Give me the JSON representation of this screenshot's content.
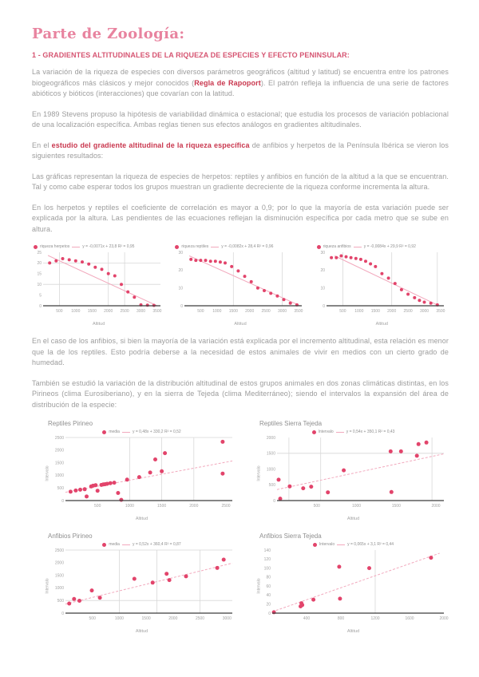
{
  "page": {
    "title": "Parte de Zoología:",
    "heading": "1 - GRADIENTES ALTITUDINALES DE LA RIQUEZA DE ESPECIES Y EFECTO PENINSULAR:"
  },
  "paragraphs": {
    "p1_a": "La variación de la riqueza de especies con diversos parámetros geográficos (altitud y latitud) se encuentra entre los patrones biogeográficos más clásicos y mejor conocidos (",
    "p1_highlight": "Regla de Rapoport",
    "p1_b": "). El patrón refleja la influencia de una serie de factores abióticos y bióticos (interacciones) que covarían con la latitud.",
    "p2": "En 1989 Stevens propuso la hipótesis de variabilidad dinámica o estacional; que estudia los procesos de variación poblacional de una localización específica. Ambas reglas tienen sus efectos análogos en gradientes altitudinales.",
    "p3_a": "En el ",
    "p3_highlight": "estudio del gradiente altitudinal de la riqueza específica",
    "p3_b": " de anfibios y herpetos de la Península Ibérica se vieron los siguientes resultados:",
    "p4": "Las gráficas representan la riqueza de especies de herpetos: reptiles y anfibios en función de la altitud a la que se encuentran. Tal y como cabe esperar todos los grupos muestran un gradiente decreciente de la riqueza conforme incrementa la altura.",
    "p5": "En los herpetos y reptiles el coeficiente de correlación es mayor a 0,9; por lo que la mayoría de esta variación puede ser explicada por la altura. Las pendientes de las ecuaciones reflejan la disminución específica por cada metro que se sube en altura.",
    "p6": "En el caso de los anfibios, si bien la mayoría de la variación está explicada por el incremento altitudinal, esta relación es menor que la de los reptiles. Esto podría deberse a la necesidad de estos animales de vivir en medios con un cierto grado de humedad.",
    "p7": "También se estudió la variación de la distribución altitudinal de estos grupos animales en dos zonas climáticas distintas, en los Pirineos (clima Eurosiberiano), y en la sierra de Tejeda (clima Mediterráneo); siendo el intervalos la expansión del área de distribución de la especie:"
  },
  "colors": {
    "title_pink": "#e8839f",
    "heading_pink": "#d65572",
    "highlight_red": "#c9374e",
    "body_gray": "#9c9c9c",
    "dot_pink": "#e2446b",
    "trend_pink": "#f2a9bd",
    "grid_gray": "#d8d8d8",
    "axis_dark": "#3c3c3c"
  },
  "chart_data": [
    {
      "type": "scatter",
      "title": "",
      "series_label": "riqueza herpetos",
      "trend_label": "y = -0,0071x + 23,8  R² = 0,95",
      "xlabel": "Altitud",
      "ylabel": "",
      "xlim": [
        0,
        3600
      ],
      "ylim": [
        0,
        25
      ],
      "xticks": [
        500,
        1000,
        1500,
        2000,
        2500,
        3000,
        3500
      ],
      "yticks": [
        0,
        5,
        10,
        15,
        20,
        25
      ],
      "xgrid": [
        500,
        2000,
        2500
      ],
      "ygrid": [
        10,
        20
      ],
      "points": [
        [
          200,
          20
        ],
        [
          400,
          21
        ],
        [
          600,
          22
        ],
        [
          800,
          21.5
        ],
        [
          1000,
          21
        ],
        [
          1200,
          20.5
        ],
        [
          1400,
          19.5
        ],
        [
          1600,
          18
        ],
        [
          1800,
          17
        ],
        [
          2000,
          15
        ],
        [
          2200,
          14
        ],
        [
          2400,
          10
        ],
        [
          2600,
          6.5
        ],
        [
          2800,
          4
        ],
        [
          3000,
          0.4
        ],
        [
          3200,
          0.3
        ],
        [
          3400,
          0.2
        ]
      ],
      "trend": [
        [
          150,
          23.5
        ],
        [
          3500,
          0
        ]
      ],
      "ml": 14,
      "r": 2
    },
    {
      "type": "scatter",
      "title": "",
      "series_label": "riqueza reptiles",
      "trend_label": "y = -0,0082x + 28,4  R² = 0,96",
      "xlabel": "Altitud",
      "ylabel": "",
      "xlim": [
        0,
        3600
      ],
      "ylim": [
        0,
        30
      ],
      "xticks": [
        500,
        1000,
        1500,
        2000,
        2500,
        3000,
        3500
      ],
      "yticks": [
        0,
        10,
        20,
        30
      ],
      "xgrid": [
        1500,
        3000
      ],
      "ygrid": [],
      "points": [
        [
          200,
          26
        ],
        [
          350,
          25.5
        ],
        [
          500,
          25.5
        ],
        [
          650,
          25.5
        ],
        [
          800,
          25
        ],
        [
          950,
          25
        ],
        [
          1100,
          24.5
        ],
        [
          1250,
          24
        ],
        [
          1450,
          22
        ],
        [
          1650,
          19.5
        ],
        [
          1850,
          16.5
        ],
        [
          2050,
          13.5
        ],
        [
          2250,
          10
        ],
        [
          2450,
          8.5
        ],
        [
          2650,
          7
        ],
        [
          2850,
          5.5
        ],
        [
          3050,
          3.5
        ],
        [
          3250,
          1.5
        ],
        [
          3450,
          0.5
        ]
      ],
      "trend": [
        [
          150,
          28
        ],
        [
          3550,
          0
        ]
      ],
      "ml": 14,
      "r": 2
    },
    {
      "type": "scatter",
      "title": "",
      "series_label": "riqueza anfibios",
      "trend_label": "y = -0,0084x + 29,9  R² = 0,92",
      "xlabel": "Altitud",
      "ylabel": "",
      "xlim": [
        0,
        3600
      ],
      "ylim": [
        0,
        30
      ],
      "xticks": [
        500,
        1000,
        1500,
        2000,
        2500,
        3000,
        3500
      ],
      "yticks": [
        0,
        10,
        20,
        30
      ],
      "xgrid": [
        500,
        2000,
        3400
      ],
      "ygrid": [],
      "points": [
        [
          150,
          27
        ],
        [
          300,
          27
        ],
        [
          450,
          28
        ],
        [
          600,
          27.5
        ],
        [
          750,
          27
        ],
        [
          900,
          26.5
        ],
        [
          1050,
          26
        ],
        [
          1200,
          25
        ],
        [
          1350,
          23.5
        ],
        [
          1500,
          22
        ],
        [
          1700,
          18
        ],
        [
          1900,
          15.5
        ],
        [
          2100,
          12.5
        ],
        [
          2300,
          9
        ],
        [
          2500,
          6.5
        ],
        [
          2700,
          4.5
        ],
        [
          2850,
          3
        ],
        [
          3000,
          2
        ],
        [
          3200,
          1.5
        ],
        [
          3400,
          0.5
        ]
      ],
      "trend": [
        [
          250,
          28
        ],
        [
          3450,
          0
        ]
      ],
      "ml": 14,
      "r": 2
    },
    {
      "type": "scatter",
      "title": "Reptiles Pirineo",
      "series_label": "media",
      "trend_label": "y = 0,48x + 330,2  R² = 0,52",
      "xlabel": "Altitud",
      "ylabel": "Intervalo",
      "xlim": [
        0,
        2600
      ],
      "ylim": [
        0,
        2500
      ],
      "xticks": [
        500,
        1000,
        1500,
        2000,
        2500
      ],
      "yticks": [
        0,
        500,
        1000,
        1500,
        2000,
        2500
      ],
      "xgrid": [
        1000,
        1500,
        2000
      ],
      "ygrid": [
        2500
      ],
      "points": [
        [
          80,
          350
        ],
        [
          160,
          400
        ],
        [
          230,
          430
        ],
        [
          300,
          450
        ],
        [
          330,
          160
        ],
        [
          400,
          560
        ],
        [
          430,
          590
        ],
        [
          470,
          610
        ],
        [
          500,
          390
        ],
        [
          560,
          620
        ],
        [
          590,
          640
        ],
        [
          620,
          650
        ],
        [
          650,
          665
        ],
        [
          700,
          690
        ],
        [
          760,
          710
        ],
        [
          820,
          300
        ],
        [
          870,
          30
        ],
        [
          960,
          830
        ],
        [
          1150,
          930
        ],
        [
          1320,
          1110
        ],
        [
          1400,
          1630
        ],
        [
          1500,
          1160
        ],
        [
          1550,
          1880
        ],
        [
          2450,
          2330
        ],
        [
          2450,
          1070
        ]
      ],
      "trend": [
        [
          0,
          330
        ],
        [
          2600,
          1570
        ]
      ],
      "ml": 24,
      "r": 2.5,
      "dash": "3,2"
    },
    {
      "type": "scatter",
      "title": "Reptiles Sierra Tejeda",
      "series_label": "Intervalo",
      "trend_label": "y = 0,54x + 350,1  R² = 0,43",
      "xlabel": "Altitud",
      "ylabel": "Intervalo",
      "xlim": [
        0,
        2100
      ],
      "ylim": [
        0,
        2000
      ],
      "xticks": [
        500,
        1000,
        1500,
        2000
      ],
      "yticks": [
        0,
        500,
        1000,
        1500,
        2000
      ],
      "xgrid": [
        150,
        550,
        1950
      ],
      "ygrid": [
        1500
      ],
      "points": [
        [
          20,
          660
        ],
        [
          40,
          60
        ],
        [
          160,
          450
        ],
        [
          330,
          390
        ],
        [
          430,
          440
        ],
        [
          640,
          260
        ],
        [
          840,
          960
        ],
        [
          1430,
          1560
        ],
        [
          1440,
          270
        ],
        [
          1560,
          1560
        ],
        [
          1760,
          1420
        ],
        [
          1780,
          1790
        ],
        [
          1880,
          1840
        ]
      ],
      "trend": [
        [
          0,
          350
        ],
        [
          2100,
          1480
        ]
      ],
      "ml": 24,
      "r": 2.5,
      "dash": "3,2"
    },
    {
      "type": "scatter",
      "title": "Anfibios Pirineo",
      "series_label": "media",
      "trend_label": "y = 0,52x + 360,4  R² = 0,87",
      "xlabel": "Altitud",
      "ylabel": "Intervalo",
      "xlim": [
        0,
        3100
      ],
      "ylim": [
        0,
        2500
      ],
      "xticks": [
        500,
        1000,
        1500,
        2000,
        2500,
        3000
      ],
      "yticks": [
        0,
        500,
        1000,
        1500,
        2000,
        2500
      ],
      "xgrid": [
        1000,
        1700,
        2500
      ],
      "ygrid": [
        500,
        2500
      ],
      "points": [
        [
          70,
          380
        ],
        [
          160,
          560
        ],
        [
          260,
          490
        ],
        [
          490,
          900
        ],
        [
          640,
          610
        ],
        [
          1280,
          1360
        ],
        [
          1620,
          1210
        ],
        [
          1880,
          1560
        ],
        [
          1930,
          1310
        ],
        [
          2240,
          1460
        ],
        [
          2820,
          1790
        ],
        [
          2940,
          2120
        ]
      ],
      "trend": [
        [
          0,
          360
        ],
        [
          3100,
          1980
        ]
      ],
      "ml": 24,
      "r": 2.5,
      "dash": "3,2"
    },
    {
      "type": "scatter",
      "title": "Anfibios Sierra Tejeda",
      "series_label": "Intervalo",
      "trend_label": "y = 0,065x + 3,1  R² = 0,44",
      "xlabel": "Altitud",
      "ylabel": "Intervalo",
      "xlim": [
        0,
        2000
      ],
      "ylim": [
        0,
        140
      ],
      "xticks": [
        400,
        800,
        1200,
        1600,
        2000
      ],
      "yticks": [
        0,
        20,
        40,
        60,
        80,
        100,
        120,
        140
      ],
      "xgrid": [
        1200
      ],
      "ygrid": [],
      "points": [
        [
          20,
          2
        ],
        [
          330,
          15
        ],
        [
          340,
          22
        ],
        [
          350,
          18
        ],
        [
          480,
          30
        ],
        [
          780,
          103
        ],
        [
          790,
          32
        ],
        [
          1130,
          100
        ],
        [
          1850,
          123
        ]
      ],
      "trend": [
        [
          0,
          3
        ],
        [
          1950,
          133
        ]
      ],
      "ml": 18,
      "r": 2.5,
      "dash": "3,2"
    }
  ]
}
